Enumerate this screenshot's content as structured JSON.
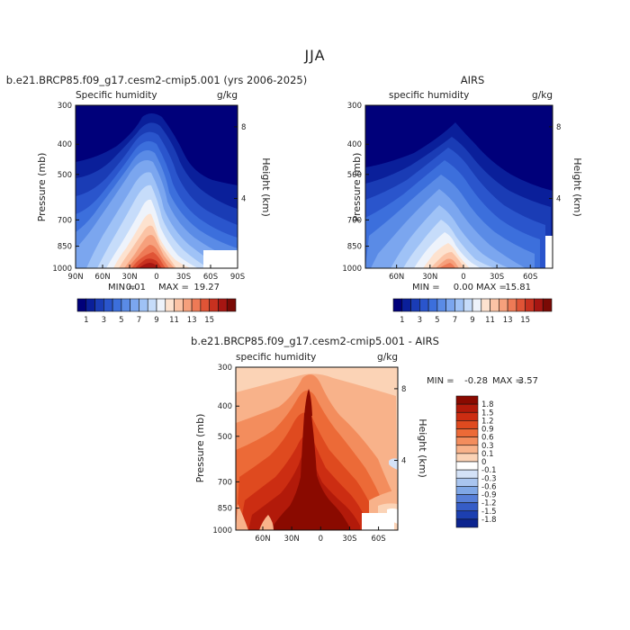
{
  "page": {
    "title": "JJA"
  },
  "chart_data": [
    {
      "type": "contour",
      "title": "b.e21.BRCP85.f09_g17.cesm2-cmip5.001 (yrs 2006-2025)",
      "subtitle_left": "Specific humidity",
      "subtitle_right": "g/kg",
      "ylabel": "Pressure (mb)",
      "ylabel_right": "Height (km)",
      "y_ticks": [
        300,
        400,
        500,
        700,
        850,
        1000
      ],
      "y_tick_labels": [
        "300",
        "400",
        "500",
        "700",
        "850",
        "1000"
      ],
      "height_ticks": [
        8,
        4
      ],
      "height_tick_labels": [
        "8",
        "4"
      ],
      "x_ticks": [
        90,
        60,
        30,
        0,
        -30,
        -60,
        -90
      ],
      "x_tick_labels": [
        "90N",
        "60N",
        "30N",
        "0",
        "30S",
        "60S",
        "90S"
      ],
      "min_label": "MIN =",
      "min_value": "0.01",
      "max_label": "MAX =",
      "max_value": "19.27",
      "colorbar_labels": [
        "1",
        "3",
        "5",
        "7",
        "9",
        "11",
        "13",
        "15"
      ]
    },
    {
      "type": "contour",
      "title": "AIRS",
      "subtitle_left": "specific humidity",
      "subtitle_right": "g/kg",
      "ylabel": "Pressure (mb)",
      "ylabel_right": "Height (km)",
      "y_ticks": [
        300,
        400,
        500,
        700,
        850,
        1000
      ],
      "y_tick_labels": [
        "300",
        "400",
        "500",
        "700",
        "850",
        "1000"
      ],
      "height_ticks": [
        8,
        4
      ],
      "height_tick_labels": [
        "8",
        "4"
      ],
      "x_ticks": [
        60,
        30,
        0,
        -30,
        -60
      ],
      "x_tick_labels": [
        "60N",
        "30N",
        "0",
        "30S",
        "60S"
      ],
      "min_label": "MIN =",
      "min_value": "0.00",
      "max_label": "MAX =",
      "max_value": "15.81",
      "colorbar_labels": [
        "1",
        "3",
        "5",
        "7",
        "9",
        "11",
        "13",
        "15"
      ]
    },
    {
      "type": "contour",
      "title": "b.e21.BRCP85.f09_g17.cesm2-cmip5.001 - AIRS",
      "subtitle_left": "specific humidity",
      "subtitle_right": "g/kg",
      "ylabel": "Pressure (mb)",
      "ylabel_right": "Height (km)",
      "y_ticks": [
        300,
        400,
        500,
        700,
        850,
        1000
      ],
      "y_tick_labels": [
        "300",
        "400",
        "500",
        "700",
        "850",
        "1000"
      ],
      "height_ticks": [
        8,
        4
      ],
      "height_tick_labels": [
        "8",
        "4"
      ],
      "x_ticks": [
        60,
        30,
        0,
        -30,
        -60
      ],
      "x_tick_labels": [
        "60N",
        "30N",
        "0",
        "30S",
        "60S"
      ],
      "min_label": "MIN =",
      "min_value": "-0.28",
      "max_label": "MAX =",
      "max_value": "3.57",
      "colorbar_labels": [
        "1.8",
        "1.5",
        "1.2",
        "0.9",
        "0.6",
        "0.3",
        "0.1",
        "0",
        "-0.1",
        "-0.3",
        "-0.6",
        "-0.9",
        "-1.2",
        "-1.5",
        "-1.8"
      ]
    }
  ],
  "colors": {
    "abs_scale": [
      "#00007a",
      "#0a1f9a",
      "#1a3cb5",
      "#2a55cc",
      "#3c6fdc",
      "#5a8be6",
      "#7ba6ef",
      "#9fc2f6",
      "#c6dcfa",
      "#eef3fb",
      "#fde2cf",
      "#fbc3a5",
      "#f6a07c",
      "#ee7a56",
      "#e05436",
      "#c8311f",
      "#a71612",
      "#7a0a05"
    ],
    "diff_scale": [
      "#8a0a00",
      "#b21a0a",
      "#cc2d12",
      "#df4a1f",
      "#ec6a37",
      "#f38d5d",
      "#f8b28a",
      "#fbd3b6",
      "#ffffff",
      "#d4e2f7",
      "#a9c5ef",
      "#7fa7e6",
      "#577fd8",
      "#365dc7",
      "#1c3fb0",
      "#0c248f"
    ]
  }
}
